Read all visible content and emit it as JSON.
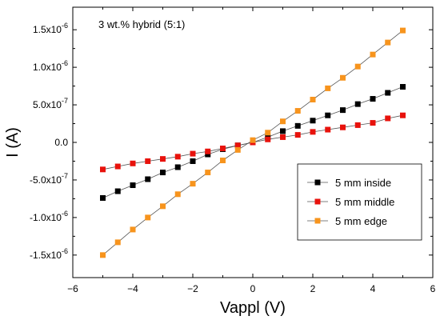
{
  "chart_data": {
    "type": "scatter",
    "annotation": "3 wt.% hybrid (5:1)",
    "xlabel": "Vappl (V)",
    "ylabel": "I (A)",
    "xlim": [
      -6,
      6
    ],
    "ylim": [
      -1.8e-06,
      1.8e-06
    ],
    "x_ticks": [
      {
        "value": -6,
        "label": "−6"
      },
      {
        "value": -4,
        "label": "−4"
      },
      {
        "value": -2,
        "label": "−2"
      },
      {
        "value": 0,
        "label": "0"
      },
      {
        "value": 2,
        "label": "2"
      },
      {
        "value": 4,
        "label": "4"
      },
      {
        "value": 6,
        "label": "6"
      }
    ],
    "y_ticks": [
      {
        "value": -1.5e-06,
        "mant": "-1.5x10",
        "exp": "-6"
      },
      {
        "value": -1e-06,
        "mant": "-1.0x10",
        "exp": "-6"
      },
      {
        "value": -5e-07,
        "mant": "-5.0x10",
        "exp": "-7"
      },
      {
        "value": 0,
        "mant": "0.0",
        "exp": ""
      },
      {
        "value": 5e-07,
        "mant": "5.0x10",
        "exp": "-7"
      },
      {
        "value": 1e-06,
        "mant": "1.0x10",
        "exp": "-6"
      },
      {
        "value": 1.5e-06,
        "mant": "1.5x10",
        "exp": "-6"
      }
    ],
    "grid": false,
    "legend_position": "lower-right",
    "x": [
      -5.0,
      -4.5,
      -4.0,
      -3.5,
      -3.0,
      -2.5,
      -2.0,
      -1.5,
      -1.0,
      -0.5,
      0.0,
      0.5,
      1.0,
      1.5,
      2.0,
      2.5,
      3.0,
      3.5,
      4.0,
      4.5,
      5.0
    ],
    "series": [
      {
        "name": "5 mm inside",
        "color": "#000000",
        "values": [
          -7.4e-07,
          -6.5e-07,
          -5.7e-07,
          -4.9e-07,
          -4e-07,
          -3.3e-07,
          -2.5e-07,
          -1.6e-07,
          -9e-08,
          -4e-08,
          0.0,
          7e-08,
          1.5e-07,
          2.2e-07,
          2.9e-07,
          3.6e-07,
          4.3e-07,
          5.1e-07,
          5.8e-07,
          6.6e-07,
          7.4e-07
        ]
      },
      {
        "name": "5 mm middle",
        "color": "#e8120c",
        "values": [
          -3.6e-07,
          -3.2e-07,
          -2.8e-07,
          -2.5e-07,
          -2.2e-07,
          -1.9e-07,
          -1.5e-07,
          -1.2e-07,
          -8e-08,
          -4e-08,
          0.0,
          4e-08,
          7e-08,
          1e-07,
          1.4e-07,
          1.7e-07,
          2e-07,
          2.3e-07,
          2.6e-07,
          3.2e-07,
          3.6e-07
        ]
      },
      {
        "name": "5 mm edge",
        "color": "#f7941d",
        "values": [
          -1.5e-06,
          -1.33e-06,
          -1.16e-06,
          -1e-06,
          -8.5e-07,
          -6.9e-07,
          -5.5e-07,
          -4e-07,
          -2.4e-07,
          -1e-07,
          3e-08,
          1.3e-07,
          2.8e-07,
          4.2e-07,
          5.7e-07,
          7.2e-07,
          8.6e-07,
          1.01e-06,
          1.17e-06,
          1.33e-06,
          1.49e-06
        ]
      }
    ]
  }
}
